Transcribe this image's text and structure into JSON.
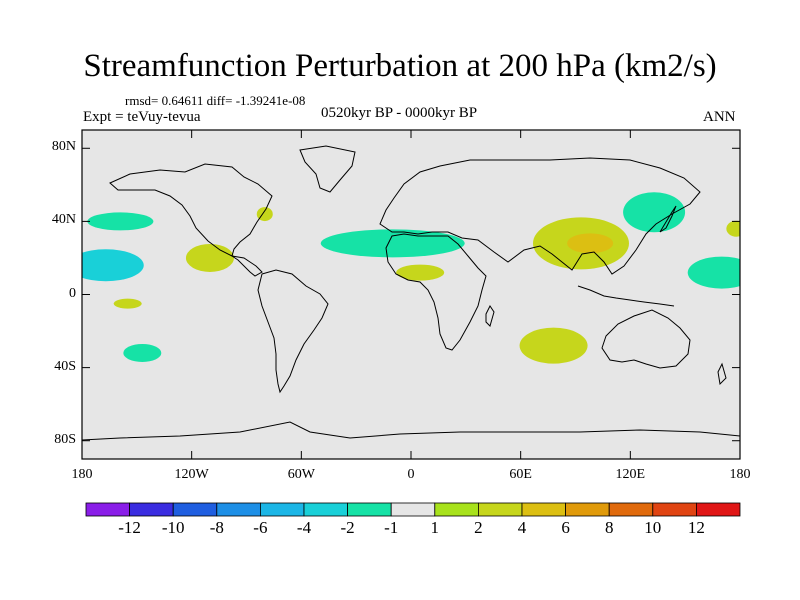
{
  "title": "Streamfunction Perturbation at 200 hPa (km2/s)",
  "stats_line": "rmsd= 0.64611 diff= -1.39241e-08",
  "experiment": "Expt = teVuy-tevua",
  "period": "0520kyr BP - 0000kyr BP",
  "season": "ANN",
  "y_ticks": [
    {
      "label": "80N",
      "lat": 80
    },
    {
      "label": "40N",
      "lat": 40
    },
    {
      "label": "0",
      "lat": 0
    },
    {
      "label": "40S",
      "lat": -40
    },
    {
      "label": "80S",
      "lat": -80
    }
  ],
  "x_ticks": [
    {
      "label": "180",
      "lon": -180
    },
    {
      "label": "120W",
      "lon": -120
    },
    {
      "label": "60W",
      "lon": -60
    },
    {
      "label": "0",
      "lon": 0
    },
    {
      "label": "60E",
      "lon": 60
    },
    {
      "label": "120E",
      "lon": 120
    },
    {
      "label": "180",
      "lon": 180
    }
  ],
  "colorbar": {
    "colors": [
      "#8a1ee8",
      "#3a2ce0",
      "#1f5ee0",
      "#1d8fe6",
      "#1cb6e6",
      "#19d0d8",
      "#16e2a6",
      "#e6e6e6",
      "#a8e21c",
      "#c6d61c",
      "#dcbf12",
      "#e09a0a",
      "#e06a0c",
      "#e04412",
      "#e01616"
    ],
    "labels": [
      "-12",
      "-10",
      "-8",
      "-6",
      "-4",
      "-2",
      "-1",
      "1",
      "2",
      "4",
      "6",
      "8",
      "10",
      "12"
    ]
  },
  "chart_data": {
    "type": "contour-map",
    "variable": "Streamfunction perturbation at 200 hPa",
    "units": "km2/s",
    "lon_range": [
      -180,
      180
    ],
    "lat_range": [
      -90,
      90
    ],
    "anomalies": [
      {
        "lon": -159,
        "lat": 40,
        "value": -1.5
      },
      {
        "lon": -167,
        "lat": 16,
        "value": -4
      },
      {
        "lon": -110,
        "lat": 20,
        "value": 2
      },
      {
        "lon": -155,
        "lat": -5,
        "value": 2
      },
      {
        "lon": -147,
        "lat": -32,
        "value": -1.5
      },
      {
        "lon": -80,
        "lat": 44,
        "value": 2
      },
      {
        "lon": -10,
        "lat": 28,
        "value": -1.5
      },
      {
        "lon": 5,
        "lat": 12,
        "value": 2
      },
      {
        "lon": 78,
        "lat": -28,
        "value": 2
      },
      {
        "lon": 93,
        "lat": 28,
        "value": 2
      },
      {
        "lon": 98,
        "lat": 28,
        "value": 4
      },
      {
        "lon": 133,
        "lat": 45,
        "value": -1.5
      },
      {
        "lon": 170,
        "lat": 12,
        "value": -1.5
      },
      {
        "lon": 178,
        "lat": 36,
        "value": 2
      }
    ]
  }
}
